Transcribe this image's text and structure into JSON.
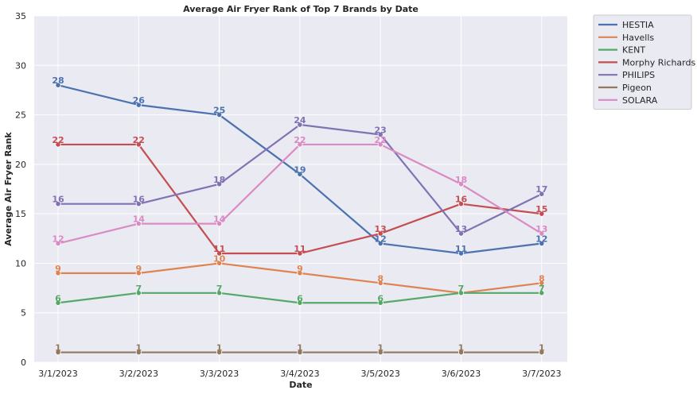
{
  "chart_data": {
    "type": "line",
    "title": "Average Air Fryer Rank of Top 7 Brands by Date",
    "xlabel": "Date",
    "ylabel": "Average Air Fryer Rank",
    "categories": [
      "3/1/2023",
      "3/2/2023",
      "3/3/2023",
      "3/4/2023",
      "3/5/2023",
      "3/6/2023",
      "3/7/2023"
    ],
    "ylim": [
      0,
      35
    ],
    "yticks": [
      0,
      5,
      10,
      15,
      20,
      25,
      30,
      35
    ],
    "grid": true,
    "legend_position": "outside-top-right",
    "series": [
      {
        "name": "HESTIA",
        "color": "#4c72b0",
        "values": [
          28,
          26,
          25,
          19,
          12,
          11,
          12
        ]
      },
      {
        "name": "Havells",
        "color": "#dd8452",
        "values": [
          9,
          9,
          10,
          9,
          8,
          7,
          8
        ]
      },
      {
        "name": "KENT",
        "color": "#55a868",
        "values": [
          6,
          7,
          7,
          6,
          6,
          7,
          7
        ]
      },
      {
        "name": "Morphy Richards",
        "color": "#c44e52",
        "values": [
          22,
          22,
          11,
          11,
          13,
          16,
          15
        ]
      },
      {
        "name": "PHILIPS",
        "color": "#8172b3",
        "values": [
          16,
          16,
          18,
          24,
          23,
          13,
          17
        ]
      },
      {
        "name": "Pigeon",
        "color": "#937860",
        "values": [
          1,
          1,
          1,
          1,
          1,
          1,
          1
        ]
      },
      {
        "name": "SOLARA",
        "color": "#da8bc3",
        "values": [
          12,
          14,
          14,
          22,
          22,
          18,
          13
        ]
      }
    ]
  }
}
